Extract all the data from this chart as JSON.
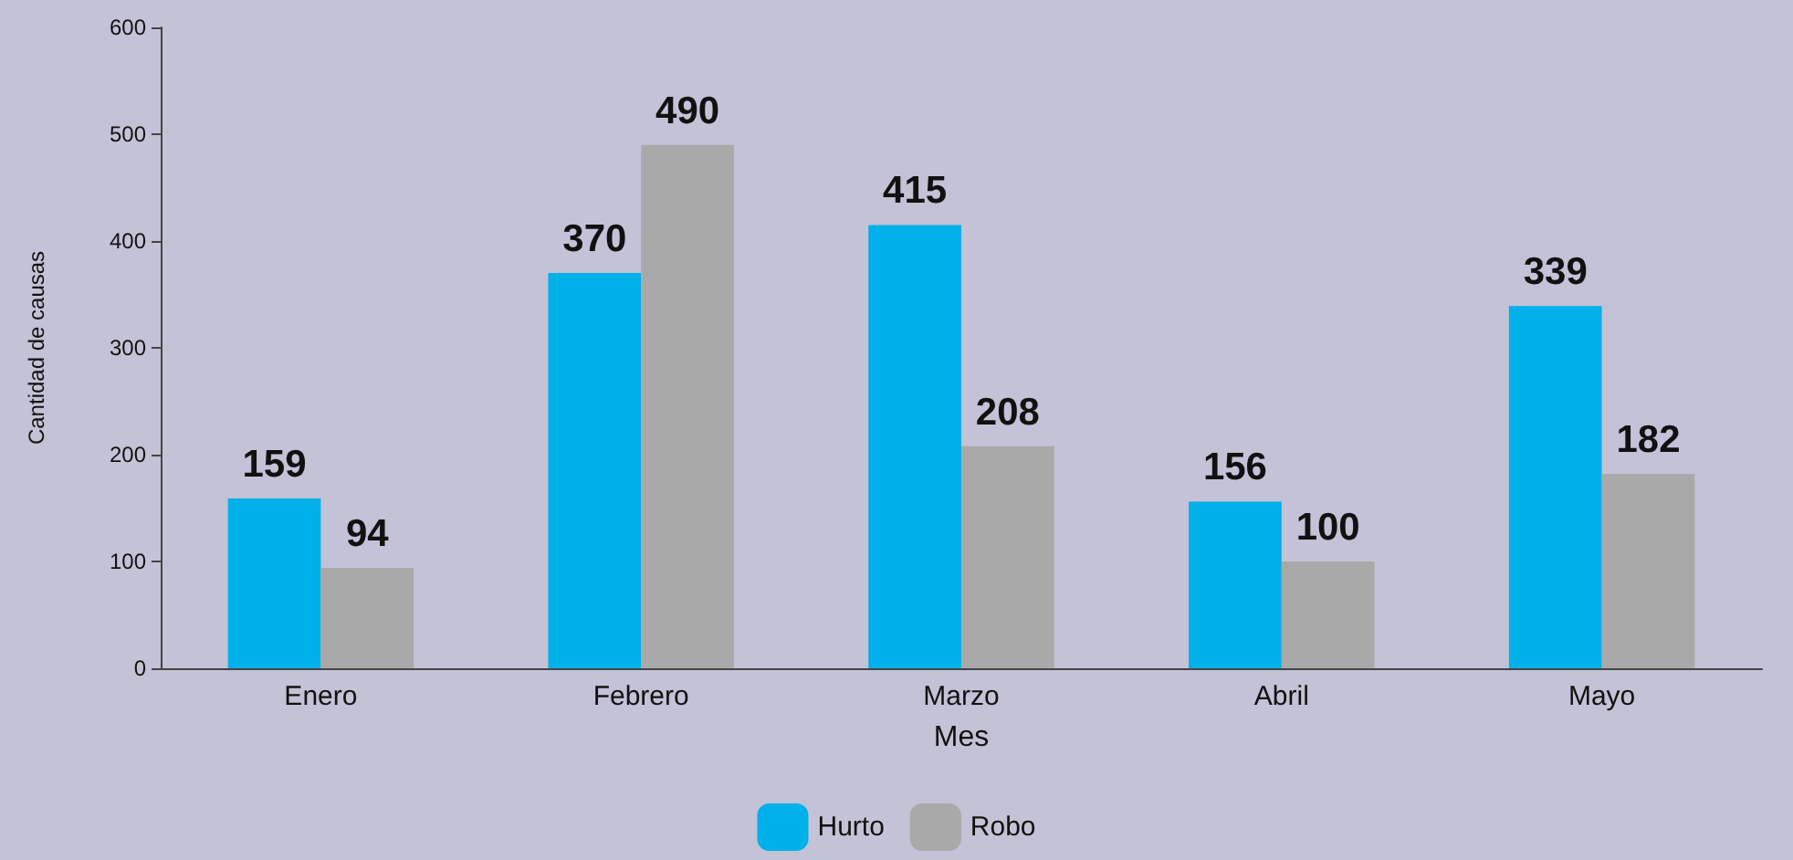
{
  "chart_data": {
    "type": "bar",
    "xlabel": "Mes",
    "ylabel": "Cantidad de causas",
    "categories": [
      "Enero",
      "Febrero",
      "Marzo",
      "Abril",
      "Mayo"
    ],
    "series": [
      {
        "name": "Hurto",
        "color": "#00b0e8",
        "values": [
          159,
          370,
          415,
          156,
          339
        ]
      },
      {
        "name": "Robo",
        "color": "#a9a9a9",
        "values": [
          94,
          490,
          208,
          100,
          182
        ]
      }
    ],
    "ylim": [
      0,
      600
    ],
    "yticks": [
      0,
      100,
      200,
      300,
      400,
      500,
      600
    ],
    "grid": false,
    "legend": "bottom",
    "data_labels": true
  }
}
